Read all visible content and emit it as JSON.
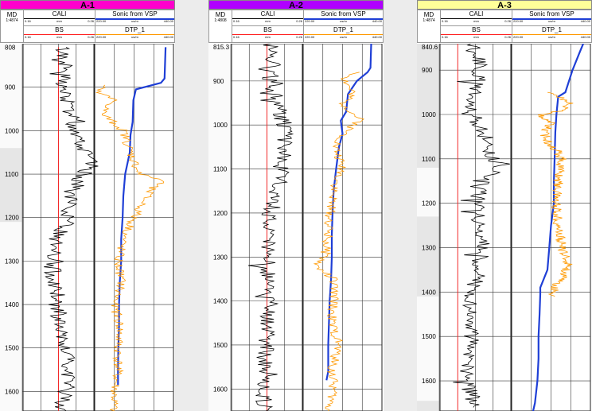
{
  "colors": {
    "cali": "#000000",
    "bs": "#ff2020",
    "sonic_vsp": "#1f3fd6",
    "dtp": "#ff9900",
    "grid": "#222222",
    "depth_col_bg": "#e6e6e6"
  },
  "headers": {
    "md_label": "MD",
    "cali_name": "CALI",
    "cali_min": "0.16",
    "cali_unit": "mm",
    "cali_max": "0.26",
    "bs_name": "BS",
    "bs_min": "0.16",
    "bs_unit": "mm",
    "bs_max": "0.26",
    "sonic_name": "Sonic from VSP",
    "sonic_min": "220.00",
    "sonic_unit": "us/m",
    "sonic_max": "440.00",
    "dtp_name": "DTP_1",
    "dtp_min": "220.00",
    "dtp_unit": "us/m",
    "dtp_max": "440.00"
  },
  "wells": [
    {
      "name": "A-1",
      "title_color": "#ff00cc",
      "md_scale": "1:4874"
    },
    {
      "name": "A-2",
      "title_color": "#b000ff",
      "md_scale": "1:4808"
    },
    {
      "name": "A-3",
      "title_color": "#ffff99",
      "md_scale": "1:4874"
    }
  ],
  "chart_data": [
    {
      "type": "line",
      "title": "A-1",
      "ylabel": "MD",
      "depth_range": [
        800,
        1645
      ],
      "depth_ticks": [
        "808",
        "900",
        "1000",
        "1100",
        "1200",
        "1300",
        "1400",
        "1500",
        "1600"
      ],
      "depth_tick_values": [
        808,
        900,
        1000,
        1100,
        1200,
        1300,
        1400,
        1500,
        1600
      ],
      "shaded_intervals": [
        [
          1040,
          1210
        ]
      ],
      "series": [
        {
          "name": "BS",
          "track": 1,
          "min": 0.16,
          "max": 0.26,
          "points": [
            [
              808,
              0.21
            ],
            [
              1645,
              0.21
            ]
          ]
        },
        {
          "name": "CALI",
          "track": 1,
          "min": 0.16,
          "max": 0.26,
          "style": "noisy",
          "points": [
            [
              808,
              0.215
            ],
            [
              850,
              0.22
            ],
            [
              900,
              0.215
            ],
            [
              950,
              0.225
            ],
            [
              1000,
              0.235
            ],
            [
              1050,
              0.25
            ],
            [
              1080,
              0.255
            ],
            [
              1100,
              0.245
            ],
            [
              1150,
              0.225
            ],
            [
              1200,
              0.225
            ],
            [
              1250,
              0.205
            ],
            [
              1300,
              0.2
            ],
            [
              1350,
              0.205
            ],
            [
              1400,
              0.21
            ],
            [
              1450,
              0.21
            ],
            [
              1500,
              0.215
            ],
            [
              1550,
              0.225
            ],
            [
              1600,
              0.22
            ],
            [
              1645,
              0.215
            ]
          ]
        },
        {
          "name": "Sonic from VSP",
          "track": 2,
          "min": 220,
          "max": 440,
          "points": [
            [
              808,
              418
            ],
            [
              880,
              415
            ],
            [
              890,
              405
            ],
            [
              905,
              335
            ],
            [
              930,
              328
            ],
            [
              980,
              326
            ],
            [
              1010,
              320
            ],
            [
              1050,
              318
            ],
            [
              1100,
              305
            ],
            [
              1150,
              300
            ],
            [
              1200,
              298
            ],
            [
              1250,
              294
            ],
            [
              1300,
              294
            ],
            [
              1350,
              290
            ],
            [
              1400,
              288
            ],
            [
              1450,
              288
            ],
            [
              1500,
              286
            ],
            [
              1550,
              285
            ],
            [
              1585,
              285
            ]
          ]
        },
        {
          "name": "DTP_1",
          "track": 2,
          "min": 220,
          "max": 440,
          "style": "noisy",
          "points": [
            [
              895,
              245
            ],
            [
              910,
              225
            ],
            [
              930,
              275
            ],
            [
              960,
              240
            ],
            [
              980,
              270
            ],
            [
              1000,
              300
            ],
            [
              1050,
              320
            ],
            [
              1100,
              345
            ],
            [
              1115,
              415
            ],
            [
              1130,
              380
            ],
            [
              1160,
              360
            ],
            [
              1200,
              330
            ],
            [
              1250,
              300
            ],
            [
              1300,
              285
            ],
            [
              1350,
              295
            ],
            [
              1400,
              275
            ],
            [
              1450,
              290
            ],
            [
              1500,
              285
            ],
            [
              1550,
              285
            ],
            [
              1600,
              275
            ],
            [
              1645,
              272
            ]
          ]
        }
      ]
    },
    {
      "type": "line",
      "title": "A-2",
      "ylabel": "MD",
      "depth_range": [
        815.3,
        1650
      ],
      "depth_ticks": [
        "815.3",
        "900",
        "1000",
        "1100",
        "1200",
        "1300",
        "1400",
        "1500",
        "1600"
      ],
      "depth_tick_values": [
        815.3,
        900,
        1000,
        1100,
        1200,
        1300,
        1400,
        1500,
        1600
      ],
      "shaded_intervals": [],
      "series": [
        {
          "name": "BS",
          "track": 1,
          "min": 0.16,
          "max": 0.26,
          "points": [
            [
              815.3,
              0.21
            ],
            [
              1650,
              0.21
            ]
          ]
        },
        {
          "name": "CALI",
          "track": 1,
          "min": 0.16,
          "max": 0.26,
          "style": "noisy",
          "points": [
            [
              815.3,
              0.215
            ],
            [
              850,
              0.22
            ],
            [
              900,
              0.215
            ],
            [
              950,
              0.225
            ],
            [
              1000,
              0.235
            ],
            [
              1050,
              0.235
            ],
            [
              1100,
              0.23
            ],
            [
              1150,
              0.225
            ],
            [
              1200,
              0.215
            ],
            [
              1250,
              0.21
            ],
            [
              1300,
              0.21
            ],
            [
              1350,
              0.21
            ],
            [
              1400,
              0.21
            ],
            [
              1450,
              0.21
            ],
            [
              1500,
              0.21
            ],
            [
              1550,
              0.205
            ],
            [
              1600,
              0.205
            ],
            [
              1650,
              0.205
            ]
          ]
        },
        {
          "name": "Sonic from VSP",
          "track": 2,
          "min": 220,
          "max": 440,
          "points": [
            [
              815.3,
              410
            ],
            [
              870,
              408
            ],
            [
              880,
              400
            ],
            [
              900,
              370
            ],
            [
              930,
              345
            ],
            [
              970,
              340
            ],
            [
              990,
              325
            ],
            [
              1020,
              330
            ],
            [
              1050,
              320
            ],
            [
              1100,
              312
            ],
            [
              1150,
              305
            ],
            [
              1200,
              302
            ],
            [
              1250,
              300
            ],
            [
              1300,
              300
            ],
            [
              1350,
              298
            ],
            [
              1400,
              294
            ],
            [
              1450,
              292
            ],
            [
              1500,
              290
            ],
            [
              1560,
              290
            ],
            [
              1580,
              285
            ]
          ]
        },
        {
          "name": "DTP_1",
          "track": 2,
          "min": 220,
          "max": 440,
          "style": "noisy",
          "points": [
            [
              880,
              380
            ],
            [
              895,
              335
            ],
            [
              930,
              360
            ],
            [
              950,
              330
            ],
            [
              990,
              380
            ],
            [
              1010,
              345
            ],
            [
              1050,
              310
            ],
            [
              1100,
              330
            ],
            [
              1150,
              305
            ],
            [
              1200,
              295
            ],
            [
              1250,
              290
            ],
            [
              1300,
              280
            ],
            [
              1320,
              255
            ],
            [
              1350,
              305
            ],
            [
              1400,
              305
            ],
            [
              1450,
              300
            ],
            [
              1500,
              320
            ],
            [
              1550,
              300
            ],
            [
              1600,
              305
            ],
            [
              1650,
              290
            ]
          ]
        }
      ]
    },
    {
      "type": "line",
      "title": "A-3",
      "ylabel": "MD",
      "depth_range": [
        840.6,
        1668
      ],
      "depth_ticks": [
        "840.6",
        "900",
        "1000",
        "1100",
        "1200",
        "1300",
        "1400",
        "1500",
        "1600"
      ],
      "depth_tick_values": [
        840.6,
        900,
        1000,
        1100,
        1200,
        1300,
        1400,
        1500,
        1600
      ],
      "shaded_intervals": [
        [
          840.6,
          1120
        ],
        [
          1230,
          1410
        ],
        [
          1645,
          1668
        ]
      ],
      "series": [
        {
          "name": "BS",
          "track": 1,
          "min": 0.16,
          "max": 0.26,
          "points": [
            [
              840.6,
              0.185
            ],
            [
              1668,
              0.185
            ]
          ]
        },
        {
          "name": "CALI",
          "track": 1,
          "min": 0.16,
          "max": 0.26,
          "style": "noisy",
          "points": [
            [
              840.6,
              0.205
            ],
            [
              880,
              0.215
            ],
            [
              900,
              0.215
            ],
            [
              950,
              0.21
            ],
            [
              1000,
              0.205
            ],
            [
              1030,
              0.22
            ],
            [
              1080,
              0.23
            ],
            [
              1120,
              0.24
            ],
            [
              1150,
              0.225
            ],
            [
              1200,
              0.21
            ],
            [
              1250,
              0.215
            ],
            [
              1300,
              0.22
            ],
            [
              1350,
              0.215
            ],
            [
              1400,
              0.205
            ],
            [
              1450,
              0.2
            ],
            [
              1500,
              0.205
            ],
            [
              1550,
              0.2
            ],
            [
              1600,
              0.2
            ],
            [
              1660,
              0.21
            ]
          ]
        },
        {
          "name": "Sonic from VSP",
          "track": 2,
          "min": 220,
          "max": 440,
          "points": [
            [
              840.6,
              420
            ],
            [
              860,
              410
            ],
            [
              900,
              390
            ],
            [
              950,
              370
            ],
            [
              960,
              350
            ],
            [
              1000,
              345
            ],
            [
              1040,
              342
            ],
            [
              1100,
              340
            ],
            [
              1150,
              338
            ],
            [
              1200,
              338
            ],
            [
              1250,
              330
            ],
            [
              1300,
              325
            ],
            [
              1350,
              320
            ],
            [
              1390,
              300
            ],
            [
              1405,
              300
            ],
            [
              1450,
              298
            ],
            [
              1500,
              295
            ],
            [
              1550,
              295
            ],
            [
              1600,
              292
            ],
            [
              1650,
              285
            ],
            [
              1668,
              280
            ]
          ]
        },
        {
          "name": "DTP_1",
          "track": 2,
          "min": 220,
          "max": 440,
          "style": "noisy",
          "points": [
            [
              950,
              320
            ],
            [
              960,
              350
            ],
            [
              970,
              380
            ],
            [
              990,
              375
            ],
            [
              1000,
              300
            ],
            [
              1020,
              330
            ],
            [
              1040,
              310
            ],
            [
              1060,
              320
            ],
            [
              1080,
              345
            ],
            [
              1100,
              360
            ],
            [
              1150,
              350
            ],
            [
              1200,
              345
            ],
            [
              1250,
              350
            ],
            [
              1300,
              360
            ],
            [
              1340,
              380
            ],
            [
              1360,
              365
            ],
            [
              1390,
              340
            ],
            [
              1410,
              335
            ]
          ]
        }
      ]
    }
  ]
}
